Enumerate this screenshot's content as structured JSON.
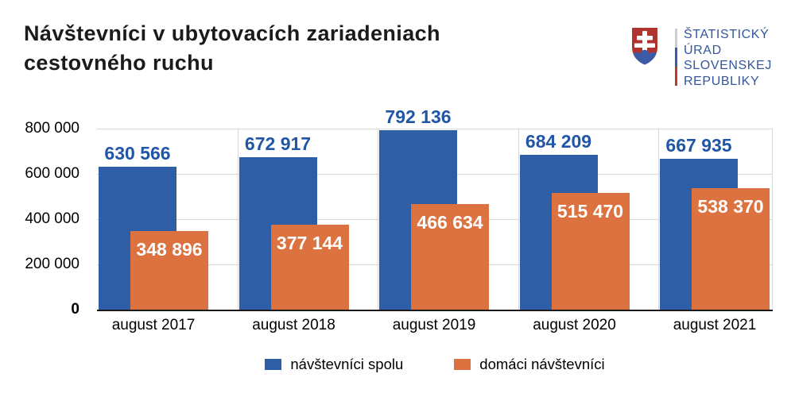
{
  "title": {
    "line1": "Návštevníci v ubytovacích zariadeniach",
    "line2": "cestovného ruchu"
  },
  "logo": {
    "line1": "ŠTATISTICKÝ",
    "line2": "ÚRAD",
    "line3": "SLOVENSKEJ",
    "line4": "REPUBLIKY",
    "colors": {
      "text": "#33569E",
      "shield_red": "#B1332E",
      "emblem_blue": "#3B5BA6",
      "cross_white": "#FFFFFF",
      "stripe": [
        "#C9CDD2",
        "#3B5BA6",
        "#BF3A2E"
      ]
    }
  },
  "chart_data": {
    "type": "bar",
    "title": "Návštevníci v ubytovacích zariadeniach cestovného ruchu",
    "categories": [
      "august 2017",
      "august 2018",
      "august 2019",
      "august 2020",
      "august 2021"
    ],
    "series": [
      {
        "name": "návštevníci spolu",
        "color": "#2E5EA6",
        "label_color": "#2156A6",
        "label_position": "above",
        "values": [
          630566,
          672917,
          792136,
          684209,
          667935
        ],
        "display_values": [
          "630 566",
          "672 917",
          "792 136",
          "684 209",
          "667 935"
        ]
      },
      {
        "name": "domáci návštevníci",
        "color": "#DC7240",
        "label_color": "#FFFFFF",
        "label_position": "inside",
        "values": [
          348896,
          377144,
          466634,
          515470,
          538370
        ],
        "display_values": [
          "348 896",
          "377 144",
          "466 634",
          "515 470",
          "538 370"
        ]
      }
    ],
    "ylim": [
      0,
      800000
    ],
    "yticks": [
      {
        "value": 0,
        "label": "0"
      },
      {
        "value": 200000,
        "label": "200 000"
      },
      {
        "value": 400000,
        "label": "400 000"
      },
      {
        "value": 600000,
        "label": "600 000"
      },
      {
        "value": 800000,
        "label": "800 000"
      }
    ],
    "grid": true,
    "legend_position": "bottom",
    "axis_colors": {
      "gridline": "#D8D8D8",
      "baseline": "#1A1A1A",
      "tick_text": "#000000"
    }
  }
}
